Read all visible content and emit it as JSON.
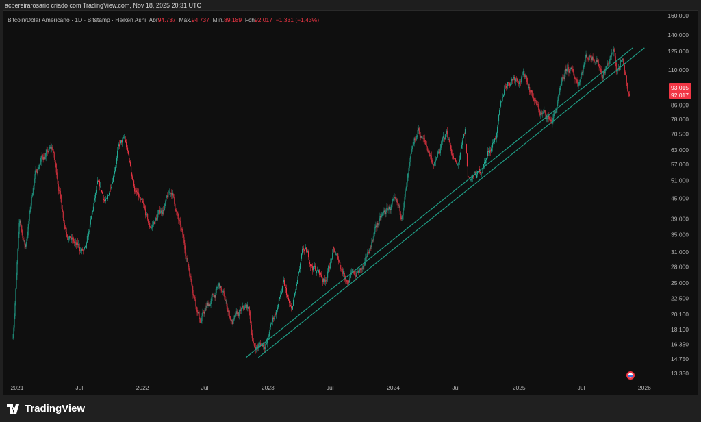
{
  "header": {
    "caption": "acpereirarosario criado com TradingView.com, Nov 18, 2025 20:31 UTC"
  },
  "legend": {
    "symbol": "Bitcoin/Dólar Americano · 1D · Bitstamp · Heiken Ashi",
    "open_label": "Abr",
    "open": "94.737",
    "high_label": "Máx.",
    "high": "94.737",
    "low_label": "Mín.",
    "low": "89.189",
    "close_label": "Fch",
    "close": "92.017",
    "change": "−1.331 (−1,43%)"
  },
  "footer": {
    "brand": "TradingView"
  },
  "colors": {
    "up": "#22ab94",
    "down": "#f23645",
    "trendline": "#1f9b84",
    "bg": "#0f0f0f"
  },
  "chart_data": {
    "type": "candlestick",
    "title": "Bitcoin/Dólar Americano · 1D · Bitstamp · Heiken Ashi",
    "y_scale": "log",
    "ylim": [
      13000,
      165000
    ],
    "y_ticks": [
      "160.000",
      "140.000",
      "125.000",
      "110.000",
      "86.000",
      "78.000",
      "70.500",
      "63.000",
      "57.000",
      "51.000",
      "45.000",
      "39.000",
      "35.000",
      "31.000",
      "28.000",
      "25.000",
      "22.500",
      "20.100",
      "18.100",
      "16.350",
      "14.750",
      "13.350"
    ],
    "y_tick_values": [
      160000,
      140000,
      125000,
      110000,
      86000,
      78000,
      70500,
      63000,
      57000,
      51000,
      45000,
      39000,
      35000,
      31000,
      28000,
      25000,
      22500,
      20100,
      18100,
      16350,
      14750,
      13350
    ],
    "x_ticks": [
      {
        "label": "2021",
        "date": "2021-01-01"
      },
      {
        "label": "Jul",
        "date": "2021-07-01"
      },
      {
        "label": "2022",
        "date": "2022-01-01"
      },
      {
        "label": "Jul",
        "date": "2022-07-01"
      },
      {
        "label": "2023",
        "date": "2023-01-01"
      },
      {
        "label": "Jul",
        "date": "2023-07-01"
      },
      {
        "label": "2024",
        "date": "2024-01-01"
      },
      {
        "label": "Jul",
        "date": "2024-07-01"
      },
      {
        "label": "2025",
        "date": "2025-01-01"
      },
      {
        "label": "Jul",
        "date": "2025-07-01"
      },
      {
        "label": "2026",
        "date": "2026-01-01"
      }
    ],
    "price_badges": [
      "93.015",
      "92.017"
    ],
    "price_path": [
      [
        "2020-12-20",
        17500
      ],
      [
        "2021-01-08",
        38000
      ],
      [
        "2021-01-25",
        32000
      ],
      [
        "2021-02-20",
        52000
      ],
      [
        "2021-03-13",
        60000
      ],
      [
        "2021-04-14",
        63000
      ],
      [
        "2021-05-20",
        38000
      ],
      [
        "2021-06-22",
        32000
      ],
      [
        "2021-07-20",
        30500
      ],
      [
        "2021-08-22",
        48000
      ],
      [
        "2021-09-20",
        43000
      ],
      [
        "2021-10-20",
        64000
      ],
      [
        "2021-11-10",
        67000
      ],
      [
        "2021-12-10",
        48000
      ],
      [
        "2022-01-22",
        36000
      ],
      [
        "2022-03-28",
        47000
      ],
      [
        "2022-05-12",
        29000
      ],
      [
        "2022-06-18",
        19500
      ],
      [
        "2022-08-13",
        24300
      ],
      [
        "2022-09-20",
        19000
      ],
      [
        "2022-11-05",
        21000
      ],
      [
        "2022-11-21",
        16000
      ],
      [
        "2022-12-28",
        16600
      ],
      [
        "2023-02-15",
        24500
      ],
      [
        "2023-03-10",
        20000
      ],
      [
        "2023-04-14",
        30500
      ],
      [
        "2023-06-15",
        25500
      ],
      [
        "2023-07-10",
        31000
      ],
      [
        "2023-08-20",
        26000
      ],
      [
        "2023-10-10",
        27500
      ],
      [
        "2023-11-10",
        37000
      ],
      [
        "2023-12-30",
        43000
      ],
      [
        "2024-01-23",
        39000
      ],
      [
        "2024-02-28",
        62000
      ],
      [
        "2024-03-14",
        72000
      ],
      [
        "2024-05-01",
        57000
      ],
      [
        "2024-06-05",
        71000
      ],
      [
        "2024-07-05",
        55000
      ],
      [
        "2024-07-28",
        69000
      ],
      [
        "2024-08-05",
        51000
      ],
      [
        "2024-09-07",
        53000
      ],
      [
        "2024-10-29",
        72000
      ],
      [
        "2024-11-22",
        99000
      ],
      [
        "2024-12-17",
        106000
      ],
      [
        "2025-01-21",
        106000
      ],
      [
        "2025-02-28",
        82000
      ],
      [
        "2025-04-08",
        77000
      ],
      [
        "2025-05-22",
        110000
      ],
      [
        "2025-06-22",
        101000
      ],
      [
        "2025-07-14",
        121000
      ],
      [
        "2025-08-14",
        123000
      ],
      [
        "2025-09-01",
        108000
      ],
      [
        "2025-10-06",
        125000
      ],
      [
        "2025-10-11",
        110000
      ],
      [
        "2025-10-28",
        114000
      ],
      [
        "2025-11-18",
        92017
      ]
    ],
    "trendlines": [
      {
        "from": [
          "2022-10-29",
          14900
        ],
        "to": [
          "2025-11-28",
          128000
        ]
      },
      {
        "from": [
          "2022-12-04",
          14900
        ],
        "to": [
          "2026-01-01",
          128000
        ]
      }
    ]
  }
}
